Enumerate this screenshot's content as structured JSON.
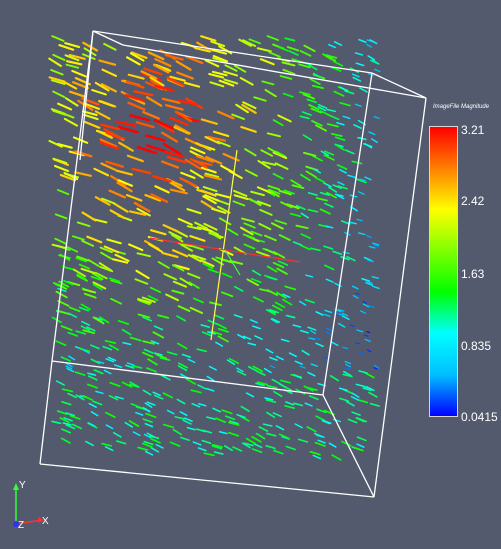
{
  "colorbar": {
    "title": "ImageFile Magnitude",
    "ticks": [
      "3.21",
      "2.42",
      "1.63",
      "0.835",
      "0.0415"
    ],
    "range": [
      0.0415,
      3.21
    ],
    "gradient": [
      "#0000ff",
      "#00bfff",
      "#00ffff",
      "#00ff00",
      "#7fff00",
      "#ffff00",
      "#ff7f00",
      "#ff0000"
    ]
  },
  "orientation_axes": {
    "x_label": "X",
    "y_label": "Y",
    "z_label": "Z"
  },
  "colors": {
    "background": "#535a6e",
    "box_outline": "#ffffff",
    "x_axis": "#ff3030",
    "y_axis": "#30ff30",
    "z_axis": "#3030ff"
  }
}
